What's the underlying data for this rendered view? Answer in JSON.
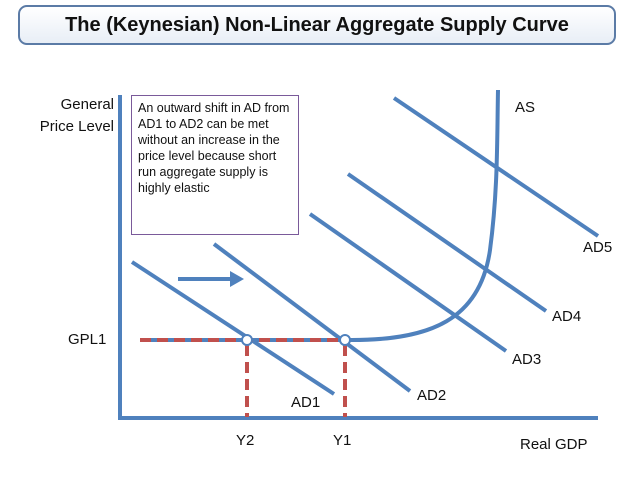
{
  "title": "The (Keynesian) Non-Linear Aggregate Supply Curve",
  "axes": {
    "y_label_line1": "General",
    "y_label_line2": "Price Level",
    "x_label": "Real GDP"
  },
  "annotation": "An outward shift in AD from AD1 to AD2 can be met without an increase in the price level because short run aggregate supply is highly elastic",
  "labels": {
    "as": "AS",
    "ad1": "AD1",
    "ad2": "AD2",
    "ad3": "AD3",
    "ad4": "AD4",
    "ad5": "AD5",
    "gpl1": "GPL1",
    "y1": "Y1",
    "y2": "Y2"
  },
  "colors": {
    "curve": "#4f81bd",
    "dashed": "#c0504d",
    "axis": "#4f81bd",
    "note_border": "#7a5a9a"
  }
}
